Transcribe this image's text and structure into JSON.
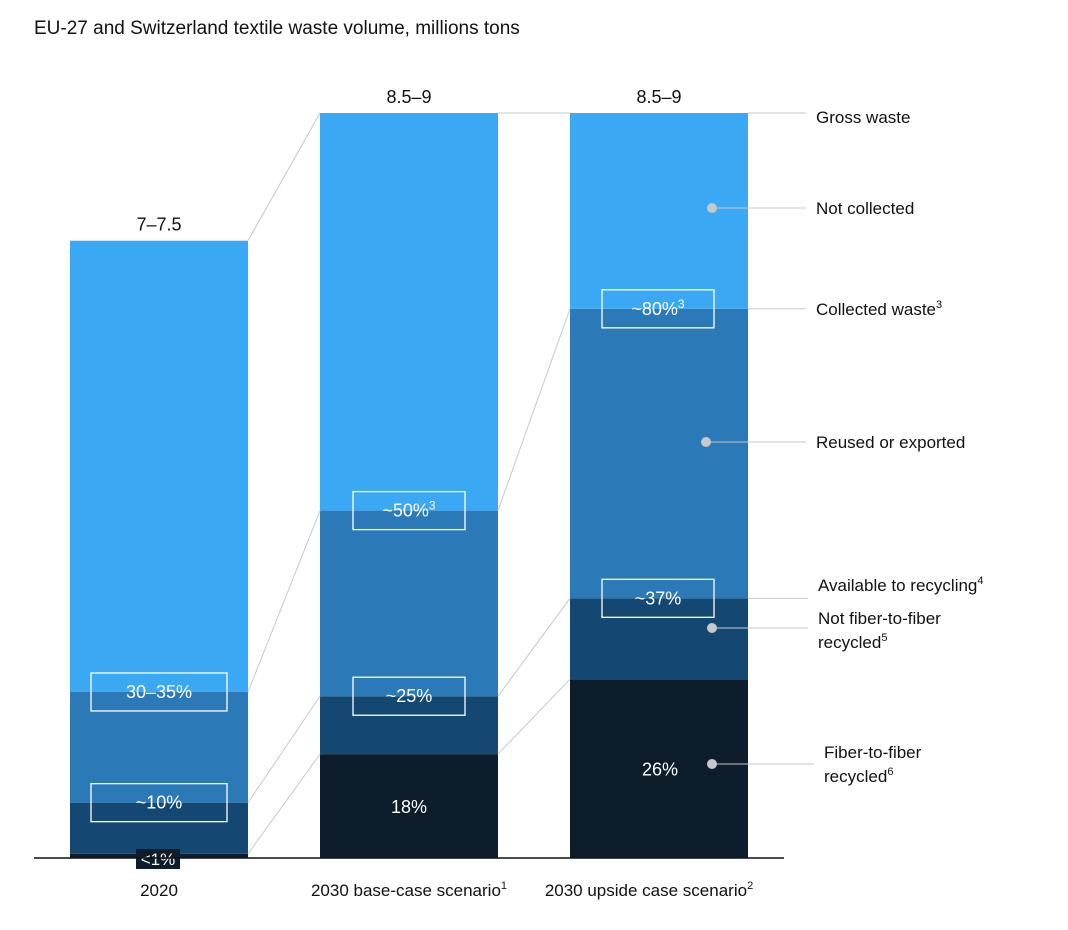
{
  "chart_data": {
    "type": "stacked-bar",
    "title": "EU-27 and Switzerland textile waste volume, millions tons",
    "unit": "millions tons",
    "categories": [
      {
        "label": "2020",
        "note": ""
      },
      {
        "label": "2030 base-case scenario",
        "note": "1"
      },
      {
        "label": "2030 upside case scenario",
        "note": "2"
      }
    ],
    "totals": [
      {
        "label": "7–7.5",
        "value": 7.25
      },
      {
        "label": "8.5–9",
        "value": 8.75
      },
      {
        "label": "8.5–9",
        "value": 8.75
      }
    ],
    "ylim": [
      0,
      8.75
    ],
    "series": [
      {
        "name": "Fiber-to-fiber recycled",
        "color": "#0e1d2c",
        "values": [
          0.05,
          1.22,
          2.1
        ]
      },
      {
        "name": "Not fiber-to-fiber recycled",
        "color": "#144872",
        "values": [
          0.6,
          0.68,
          0.95
        ]
      },
      {
        "name": "Reused or exported",
        "color": "#2c79b8",
        "values": [
          1.3,
          2.18,
          3.4
        ]
      },
      {
        "name": "Not collected",
        "color": "#3ba8f3",
        "values": [
          5.3,
          4.67,
          2.3
        ]
      }
    ],
    "collected_labels": [
      {
        "label": "30–35%",
        "sup": ""
      },
      {
        "label": "~50%",
        "sup": "3"
      },
      {
        "label": "~80%",
        "sup": "3"
      }
    ],
    "available_labels": [
      {
        "label": "~10%",
        "sup": ""
      },
      {
        "label": "~25%",
        "sup": ""
      },
      {
        "label": "~37%",
        "sup": ""
      }
    ],
    "fiber_labels": [
      "<1%",
      "18%",
      "26%"
    ],
    "legend": {
      "gross": {
        "text": "Gross waste",
        "sup": ""
      },
      "not_collected": {
        "text": "Not collected",
        "sup": ""
      },
      "collected": {
        "text": "Collected waste",
        "sup": "3"
      },
      "reused": {
        "text": "Reused or exported",
        "sup": ""
      },
      "available": {
        "text": "Available to recycling",
        "sup": "4"
      },
      "not_fiber": {
        "line1": "Not fiber-to-fiber",
        "line2": "recycled",
        "sup": "5"
      },
      "fiber": {
        "line1": "Fiber-to-fiber",
        "line2": "recycled",
        "sup": "6"
      }
    }
  }
}
